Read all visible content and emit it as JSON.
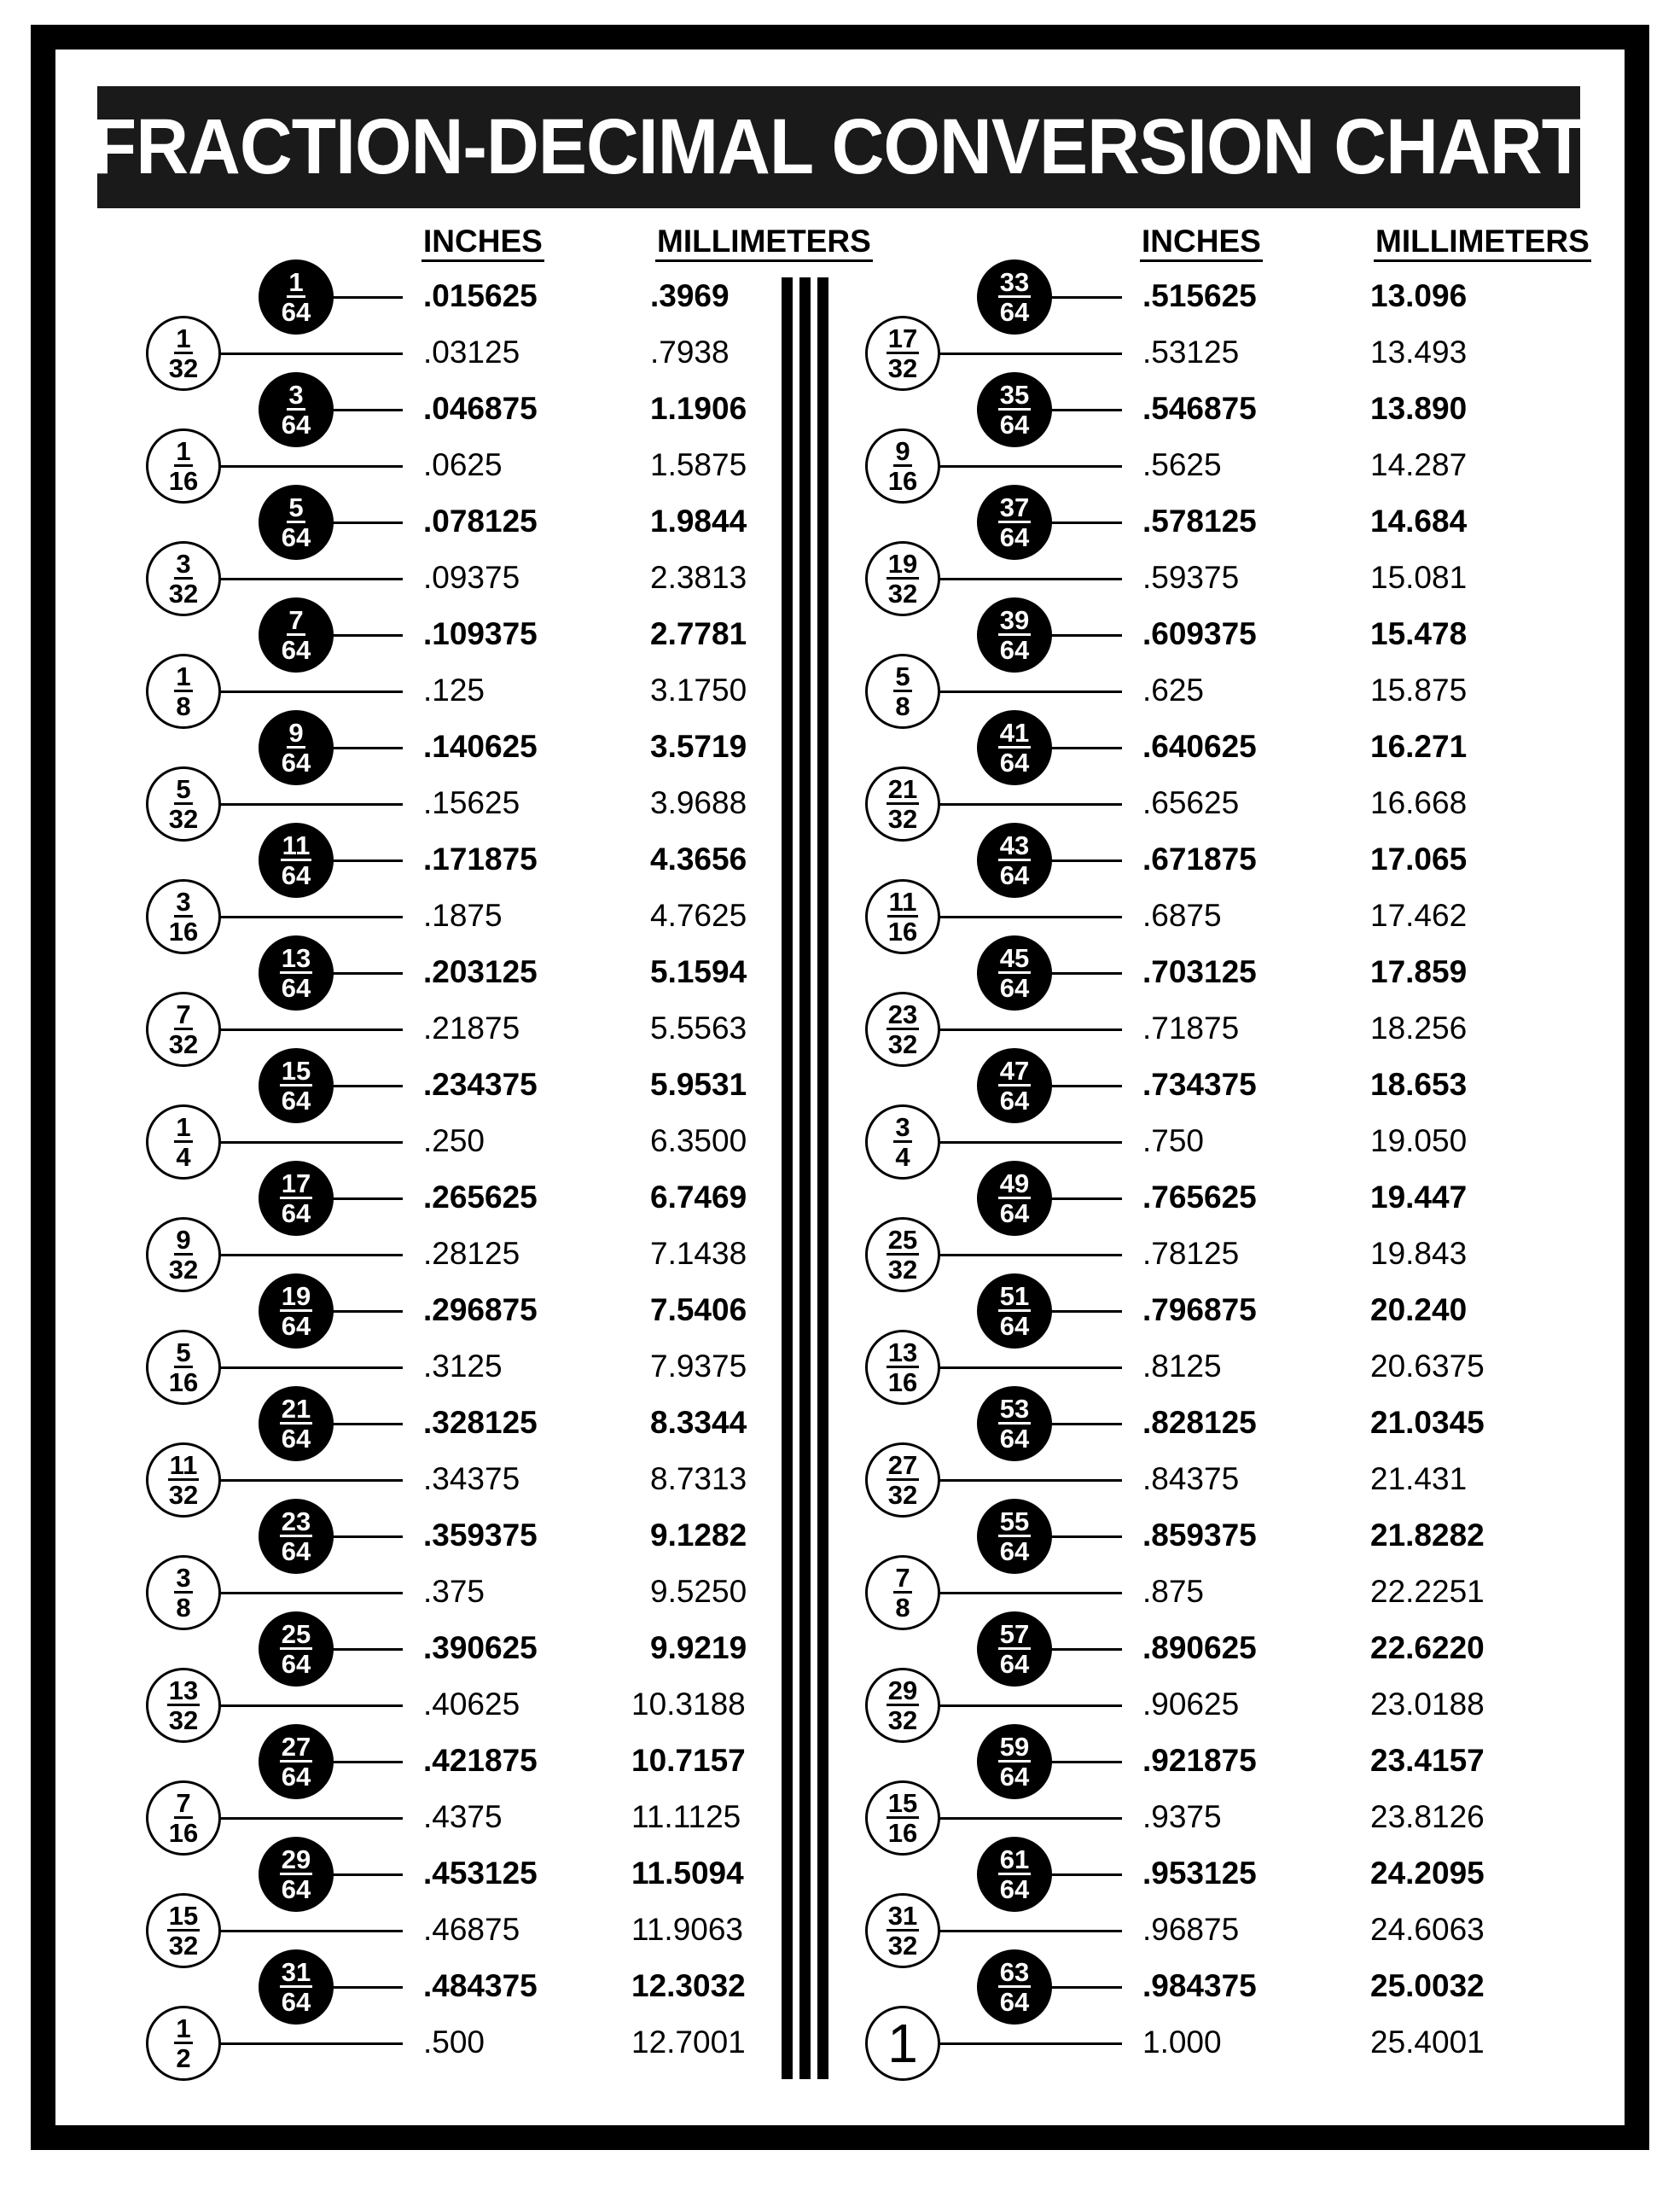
{
  "title": "FRACTION-DECIMAL CONVERSION CHART",
  "headers": {
    "inches": "INCHES",
    "millimeters": "MILLIMETERS"
  },
  "columns": [
    {
      "rows": [
        {
          "num": "1",
          "den": "64",
          "inches": ".015625",
          "mm": ".3969"
        },
        {
          "num": "1",
          "den": "32",
          "inches": ".03125",
          "mm": ".7938"
        },
        {
          "num": "3",
          "den": "64",
          "inches": ".046875",
          "mm": "1.1906"
        },
        {
          "num": "1",
          "den": "16",
          "inches": ".0625",
          "mm": "1.5875"
        },
        {
          "num": "5",
          "den": "64",
          "inches": ".078125",
          "mm": "1.9844"
        },
        {
          "num": "3",
          "den": "32",
          "inches": ".09375",
          "mm": "2.3813"
        },
        {
          "num": "7",
          "den": "64",
          "inches": ".109375",
          "mm": "2.7781"
        },
        {
          "num": "1",
          "den": "8",
          "inches": ".125",
          "mm": "3.1750"
        },
        {
          "num": "9",
          "den": "64",
          "inches": ".140625",
          "mm": "3.5719"
        },
        {
          "num": "5",
          "den": "32",
          "inches": ".15625",
          "mm": "3.9688"
        },
        {
          "num": "11",
          "den": "64",
          "inches": ".171875",
          "mm": "4.3656"
        },
        {
          "num": "3",
          "den": "16",
          "inches": ".1875",
          "mm": "4.7625"
        },
        {
          "num": "13",
          "den": "64",
          "inches": ".203125",
          "mm": "5.1594"
        },
        {
          "num": "7",
          "den": "32",
          "inches": ".21875",
          "mm": "5.5563"
        },
        {
          "num": "15",
          "den": "64",
          "inches": ".234375",
          "mm": "5.9531"
        },
        {
          "num": "1",
          "den": "4",
          "inches": ".250",
          "mm": "6.3500"
        },
        {
          "num": "17",
          "den": "64",
          "inches": ".265625",
          "mm": "6.7469"
        },
        {
          "num": "9",
          "den": "32",
          "inches": ".28125",
          "mm": "7.1438"
        },
        {
          "num": "19",
          "den": "64",
          "inches": ".296875",
          "mm": "7.5406"
        },
        {
          "num": "5",
          "den": "16",
          "inches": ".3125",
          "mm": "7.9375"
        },
        {
          "num": "21",
          "den": "64",
          "inches": ".328125",
          "mm": "8.3344"
        },
        {
          "num": "11",
          "den": "32",
          "inches": ".34375",
          "mm": "8.7313"
        },
        {
          "num": "23",
          "den": "64",
          "inches": ".359375",
          "mm": "9.1282"
        },
        {
          "num": "3",
          "den": "8",
          "inches": ".375",
          "mm": "9.5250"
        },
        {
          "num": "25",
          "den": "64",
          "inches": ".390625",
          "mm": "9.9219"
        },
        {
          "num": "13",
          "den": "32",
          "inches": ".40625",
          "mm": "10.3188"
        },
        {
          "num": "27",
          "den": "64",
          "inches": ".421875",
          "mm": "10.7157"
        },
        {
          "num": "7",
          "den": "16",
          "inches": ".4375",
          "mm": "11.1125"
        },
        {
          "num": "29",
          "den": "64",
          "inches": ".453125",
          "mm": "11.5094"
        },
        {
          "num": "15",
          "den": "32",
          "inches": ".46875",
          "mm": "11.9063"
        },
        {
          "num": "31",
          "den": "64",
          "inches": ".484375",
          "mm": "12.3032"
        },
        {
          "num": "1",
          "den": "2",
          "inches": ".500",
          "mm": "12.7001"
        }
      ]
    },
    {
      "rows": [
        {
          "num": "33",
          "den": "64",
          "inches": ".515625",
          "mm": "13.096"
        },
        {
          "num": "17",
          "den": "32",
          "inches": ".53125",
          "mm": "13.493"
        },
        {
          "num": "35",
          "den": "64",
          "inches": ".546875",
          "mm": "13.890"
        },
        {
          "num": "9",
          "den": "16",
          "inches": ".5625",
          "mm": "14.287"
        },
        {
          "num": "37",
          "den": "64",
          "inches": ".578125",
          "mm": "14.684"
        },
        {
          "num": "19",
          "den": "32",
          "inches": ".59375",
          "mm": "15.081"
        },
        {
          "num": "39",
          "den": "64",
          "inches": ".609375",
          "mm": "15.478"
        },
        {
          "num": "5",
          "den": "8",
          "inches": ".625",
          "mm": "15.875"
        },
        {
          "num": "41",
          "den": "64",
          "inches": ".640625",
          "mm": "16.271"
        },
        {
          "num": "21",
          "den": "32",
          "inches": ".65625",
          "mm": "16.668"
        },
        {
          "num": "43",
          "den": "64",
          "inches": ".671875",
          "mm": "17.065"
        },
        {
          "num": "11",
          "den": "16",
          "inches": ".6875",
          "mm": "17.462"
        },
        {
          "num": "45",
          "den": "64",
          "inches": ".703125",
          "mm": "17.859"
        },
        {
          "num": "23",
          "den": "32",
          "inches": ".71875",
          "mm": "18.256"
        },
        {
          "num": "47",
          "den": "64",
          "inches": ".734375",
          "mm": "18.653"
        },
        {
          "num": "3",
          "den": "4",
          "inches": ".750",
          "mm": "19.050"
        },
        {
          "num": "49",
          "den": "64",
          "inches": ".765625",
          "mm": "19.447"
        },
        {
          "num": "25",
          "den": "32",
          "inches": ".78125",
          "mm": "19.843"
        },
        {
          "num": "51",
          "den": "64",
          "inches": ".796875",
          "mm": "20.240"
        },
        {
          "num": "13",
          "den": "16",
          "inches": ".8125",
          "mm": "20.6375"
        },
        {
          "num": "53",
          "den": "64",
          "inches": ".828125",
          "mm": "21.0345"
        },
        {
          "num": "27",
          "den": "32",
          "inches": ".84375",
          "mm": "21.431"
        },
        {
          "num": "55",
          "den": "64",
          "inches": ".859375",
          "mm": "21.8282"
        },
        {
          "num": "7",
          "den": "8",
          "inches": ".875",
          "mm": "22.2251"
        },
        {
          "num": "57",
          "den": "64",
          "inches": ".890625",
          "mm": "22.6220"
        },
        {
          "num": "29",
          "den": "32",
          "inches": ".90625",
          "mm": "23.0188"
        },
        {
          "num": "59",
          "den": "64",
          "inches": ".921875",
          "mm": "23.4157"
        },
        {
          "num": "15",
          "den": "16",
          "inches": ".9375",
          "mm": "23.8126"
        },
        {
          "num": "61",
          "den": "64",
          "inches": ".953125",
          "mm": "24.2095"
        },
        {
          "num": "31",
          "den": "32",
          "inches": ".96875",
          "mm": "24.6063"
        },
        {
          "num": "63",
          "den": "64",
          "inches": ".984375",
          "mm": "25.0032"
        },
        {
          "num": "1",
          "den": "",
          "inches": "1.000",
          "mm": "25.4001"
        }
      ]
    }
  ],
  "colors": {
    "ink": "#000000",
    "title_bg": "#1a1a1a",
    "title_text": "#ffffff"
  }
}
